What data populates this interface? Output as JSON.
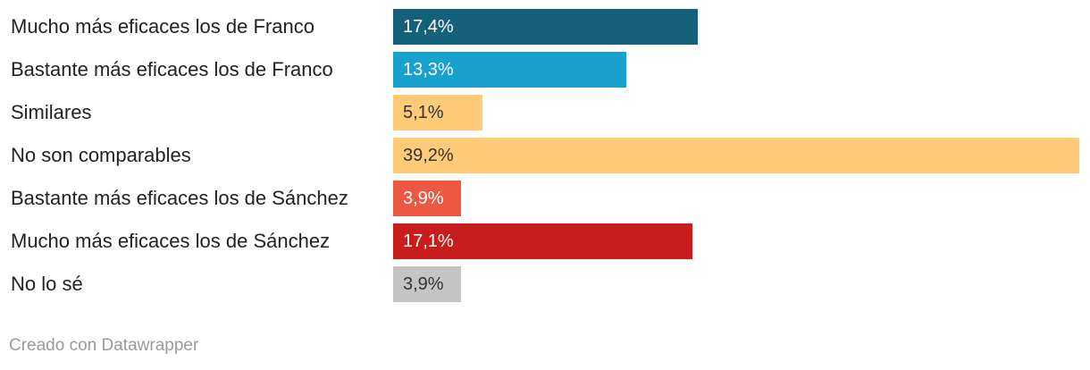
{
  "chart_data": {
    "type": "bar",
    "orientation": "horizontal",
    "categories": [
      "Mucho más eficaces los de Franco",
      "Bastante más eficaces los de Franco",
      "Similares",
      "No son comparables",
      "Bastante más eficaces los de Sánchez",
      "Mucho más eficaces los de Sánchez",
      "No lo sé"
    ],
    "values": [
      17.4,
      13.3,
      5.1,
      39.2,
      3.9,
      17.1,
      3.9
    ],
    "value_labels": [
      "17,4%",
      "13,3%",
      "5,1%",
      "39,2%",
      "3,9%",
      "17,1%",
      "3,9%"
    ],
    "colors": [
      "#15607a",
      "#18a1cd",
      "#ffcb78",
      "#ffcb78",
      "#ec5940",
      "#c71e1d",
      "#c4c4c4"
    ],
    "label_colors": [
      "#ffffff",
      "#ffffff",
      "#333333",
      "#333333",
      "#ffffff",
      "#ffffff",
      "#333333"
    ],
    "xlim": [
      0,
      39.2
    ],
    "grid": false,
    "legend": "none"
  },
  "footer": {
    "credit": "Creado con Datawrapper"
  }
}
